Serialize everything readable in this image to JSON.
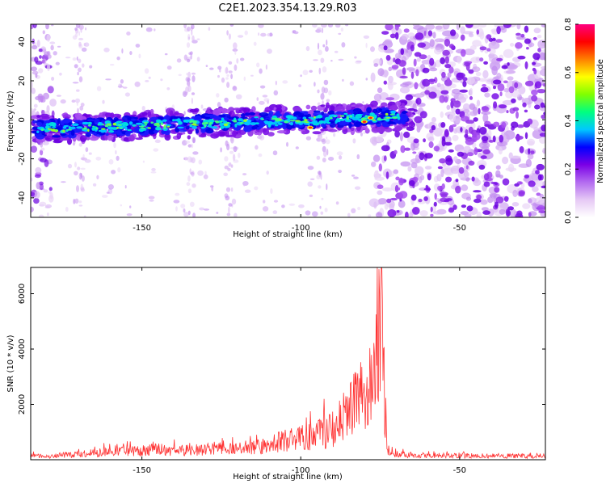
{
  "chart_data": [
    {
      "type": "heatmap",
      "title": "C2E1.2023.354.13.29.R03",
      "xlabel": "Height of straight line (km)",
      "ylabel": "Frequency (Hz)",
      "xlim": [
        -185,
        -23
      ],
      "ylim": [
        -50,
        49
      ],
      "xticks": [
        -150,
        -100,
        -50
      ],
      "yticks": [
        -40,
        -20,
        0,
        20,
        40
      ],
      "colorbar": {
        "label": "Normalized spectral amplitude",
        "range": [
          0,
          0.8
        ],
        "ticks": [
          0.0,
          0.2,
          0.4,
          0.6,
          0.8
        ],
        "tick_labels": [
          "0.0",
          "0.2",
          "0.4",
          "0.6",
          "0.8"
        ],
        "colors": [
          "#ffffff",
          "#e6c9f5",
          "#b36bf0",
          "#7a00e6",
          "#0000ff",
          "#00c8ff",
          "#00ff80",
          "#80ff00",
          "#ffff00",
          "#ff8000",
          "#ff0000",
          "#ff0080"
        ]
      },
      "band": {
        "x_range": [
          -185,
          -65
        ],
        "center_start_hz": -5,
        "center_end_hz": 2,
        "peak_points": [
          [
            -97,
            -4
          ],
          [
            -80,
            -1
          ],
          [
            -78,
            1
          ]
        ]
      },
      "noise_region_x_start": -75
    },
    {
      "type": "line",
      "xlabel": "Height of straight line (km)",
      "ylabel": "SNR (10 * v/v)",
      "xlim": [
        -185,
        -23
      ],
      "ylim": [
        0,
        6950
      ],
      "xticks": [
        -150,
        -100,
        -50
      ],
      "yticks": [
        2000,
        4000,
        6000
      ],
      "line_color": "#ff3333",
      "profile_points": [
        [
          -185,
          180
        ],
        [
          -180,
          160
        ],
        [
          -170,
          260
        ],
        [
          -160,
          360
        ],
        [
          -150,
          420
        ],
        [
          -145,
          500
        ],
        [
          -140,
          420
        ],
        [
          -130,
          470
        ],
        [
          -125,
          560
        ],
        [
          -120,
          520
        ],
        [
          -110,
          650
        ],
        [
          -105,
          900
        ],
        [
          -100,
          1000
        ],
        [
          -95,
          1100
        ],
        [
          -90,
          1500
        ],
        [
          -85,
          2200
        ],
        [
          -82,
          3000
        ],
        [
          -80,
          2600
        ],
        [
          -78,
          3400
        ],
        [
          -76,
          4600
        ],
        [
          -74.5,
          6950
        ],
        [
          -73.5,
          2500
        ],
        [
          -72.5,
          300
        ],
        [
          -70,
          250
        ],
        [
          -65,
          220
        ],
        [
          -60,
          200
        ],
        [
          -50,
          190
        ],
        [
          -40,
          180
        ],
        [
          -23,
          170
        ]
      ]
    }
  ]
}
